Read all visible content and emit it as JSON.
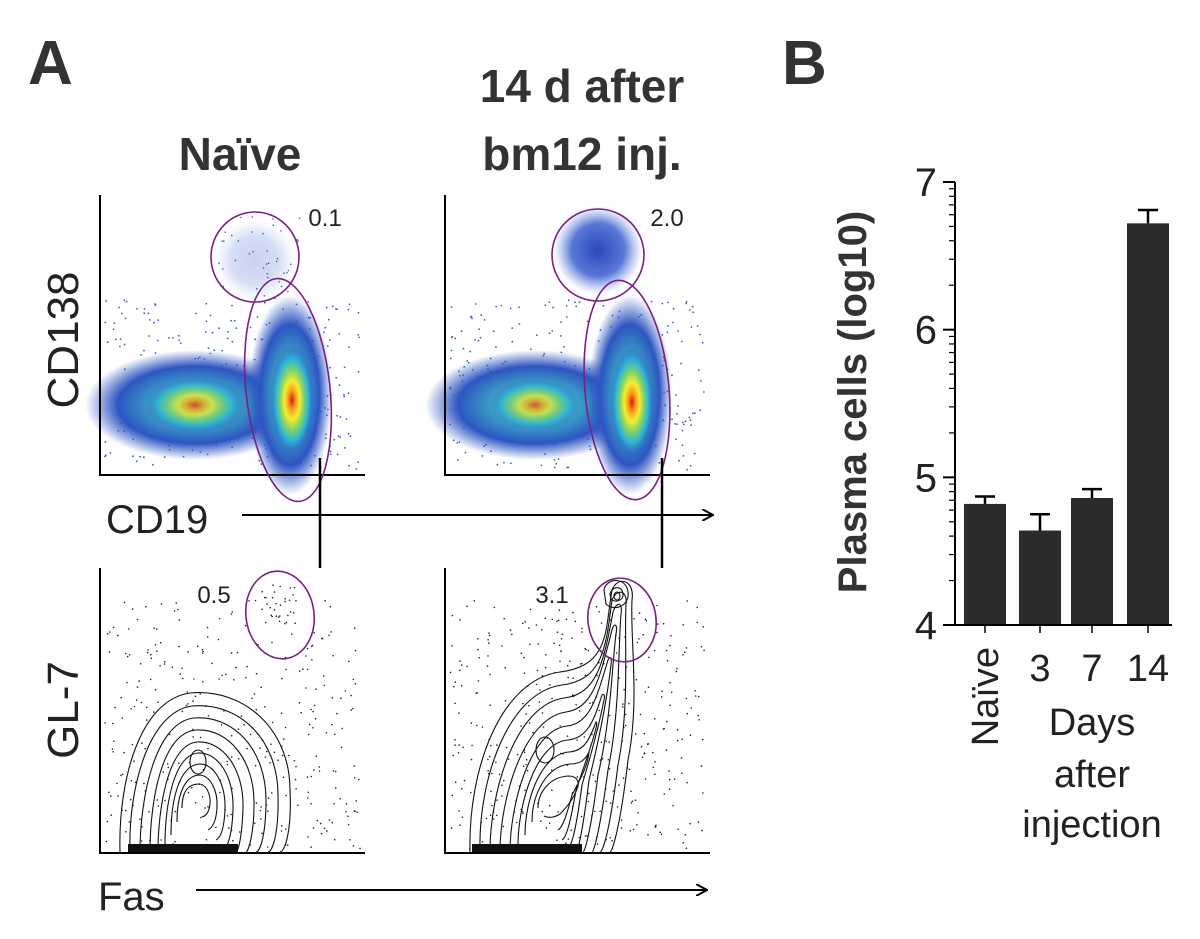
{
  "panels": {
    "a": {
      "letter": "A",
      "col_naive": "Naïve",
      "col_treated_line1": "14 d after",
      "col_treated_line2": "bm12 inj.",
      "row1_ylabel": "CD138",
      "row1_xlabel": "CD19",
      "row2_ylabel": "GL-7",
      "row2_xlabel": "Fas",
      "gate_values": {
        "naive_cd138": "0.1",
        "treated_cd138": "2.0",
        "naive_gl7": "0.5",
        "treated_gl7": "3.1"
      }
    },
    "b": {
      "letter": "B"
    }
  },
  "chart_data": {
    "type": "bar",
    "categories": [
      "Naïve",
      "3",
      "7",
      "14"
    ],
    "values": [
      4.82,
      4.64,
      4.86,
      6.72
    ],
    "errors": [
      0.05,
      0.11,
      0.06,
      0.09
    ],
    "ylabel": "Plasma cells (log10)",
    "xlabel_line1": "Days",
    "xlabel_line2": "after",
    "xlabel_line3": "injection",
    "ylim": [
      4,
      7
    ],
    "yticks": [
      "4",
      "5",
      "6",
      "7"
    ],
    "bar_color": "#2b2b2b"
  }
}
